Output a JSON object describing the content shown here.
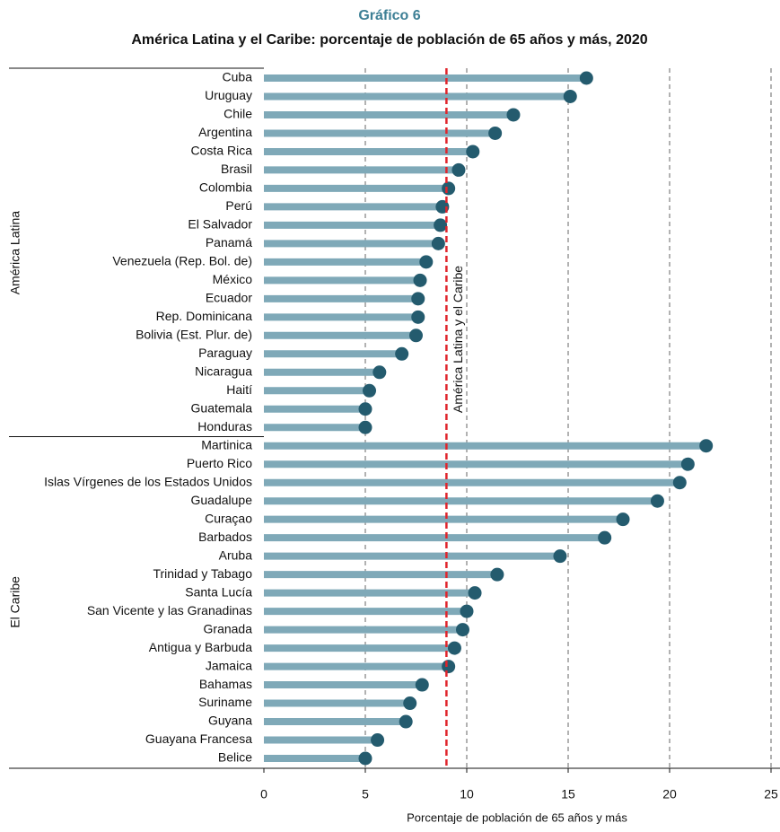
{
  "chart_data": {
    "type": "lollipop",
    "title": "Gráfico 6",
    "subtitle": "América Latina y el Caribe: porcentaje de población de 65 años y más, 2020",
    "x_label": "Porcentaje de población de 65 años y más",
    "xlim": [
      0,
      25
    ],
    "xticks": [
      0,
      5,
      10,
      15,
      20,
      25
    ],
    "grid": true,
    "color": "#7fa9b8",
    "marker_color": "#245b6e",
    "reference": {
      "label": "América Latina y el Caribe",
      "value": 9.0,
      "color": "#e0242b"
    },
    "groups": [
      {
        "label": "América Latina",
        "categories": [
          "Cuba",
          "Uruguay",
          "Chile",
          "Argentina",
          "Costa Rica",
          "Brasil",
          "Colombia",
          "Perú",
          "El Salvador",
          "Panamá",
          "Venezuela (Rep. Bol. de)",
          "México",
          "Ecuador",
          "Rep. Dominicana",
          "Bolivia (Est. Plur. de)",
          "Paraguay",
          "Nicaragua",
          "Haití",
          "Guatemala",
          "Honduras"
        ],
        "values": [
          15.9,
          15.1,
          12.3,
          11.4,
          10.3,
          9.6,
          9.1,
          8.8,
          8.7,
          8.6,
          8.0,
          7.7,
          7.6,
          7.6,
          7.5,
          6.8,
          5.7,
          5.2,
          5.0,
          5.0
        ]
      },
      {
        "label": "El Caribe",
        "categories": [
          "Martinica",
          "Puerto Rico",
          "Islas Vírgenes de los Estados Unidos",
          "Guadalupe",
          "Curaçao",
          "Barbados",
          "Aruba",
          "Trinidad y Tabago",
          "Santa Lucía",
          "San Vicente y las Granadinas",
          "Granada",
          "Antigua y Barbuda",
          "Jamaica",
          "Bahamas",
          "Suriname",
          "Guyana",
          "Guayana Francesa",
          "Belice"
        ],
        "values": [
          21.8,
          20.9,
          20.5,
          19.4,
          17.7,
          16.8,
          14.6,
          11.5,
          10.4,
          10.0,
          9.8,
          9.4,
          9.1,
          7.8,
          7.2,
          7.0,
          5.6,
          5.0
        ]
      }
    ]
  }
}
